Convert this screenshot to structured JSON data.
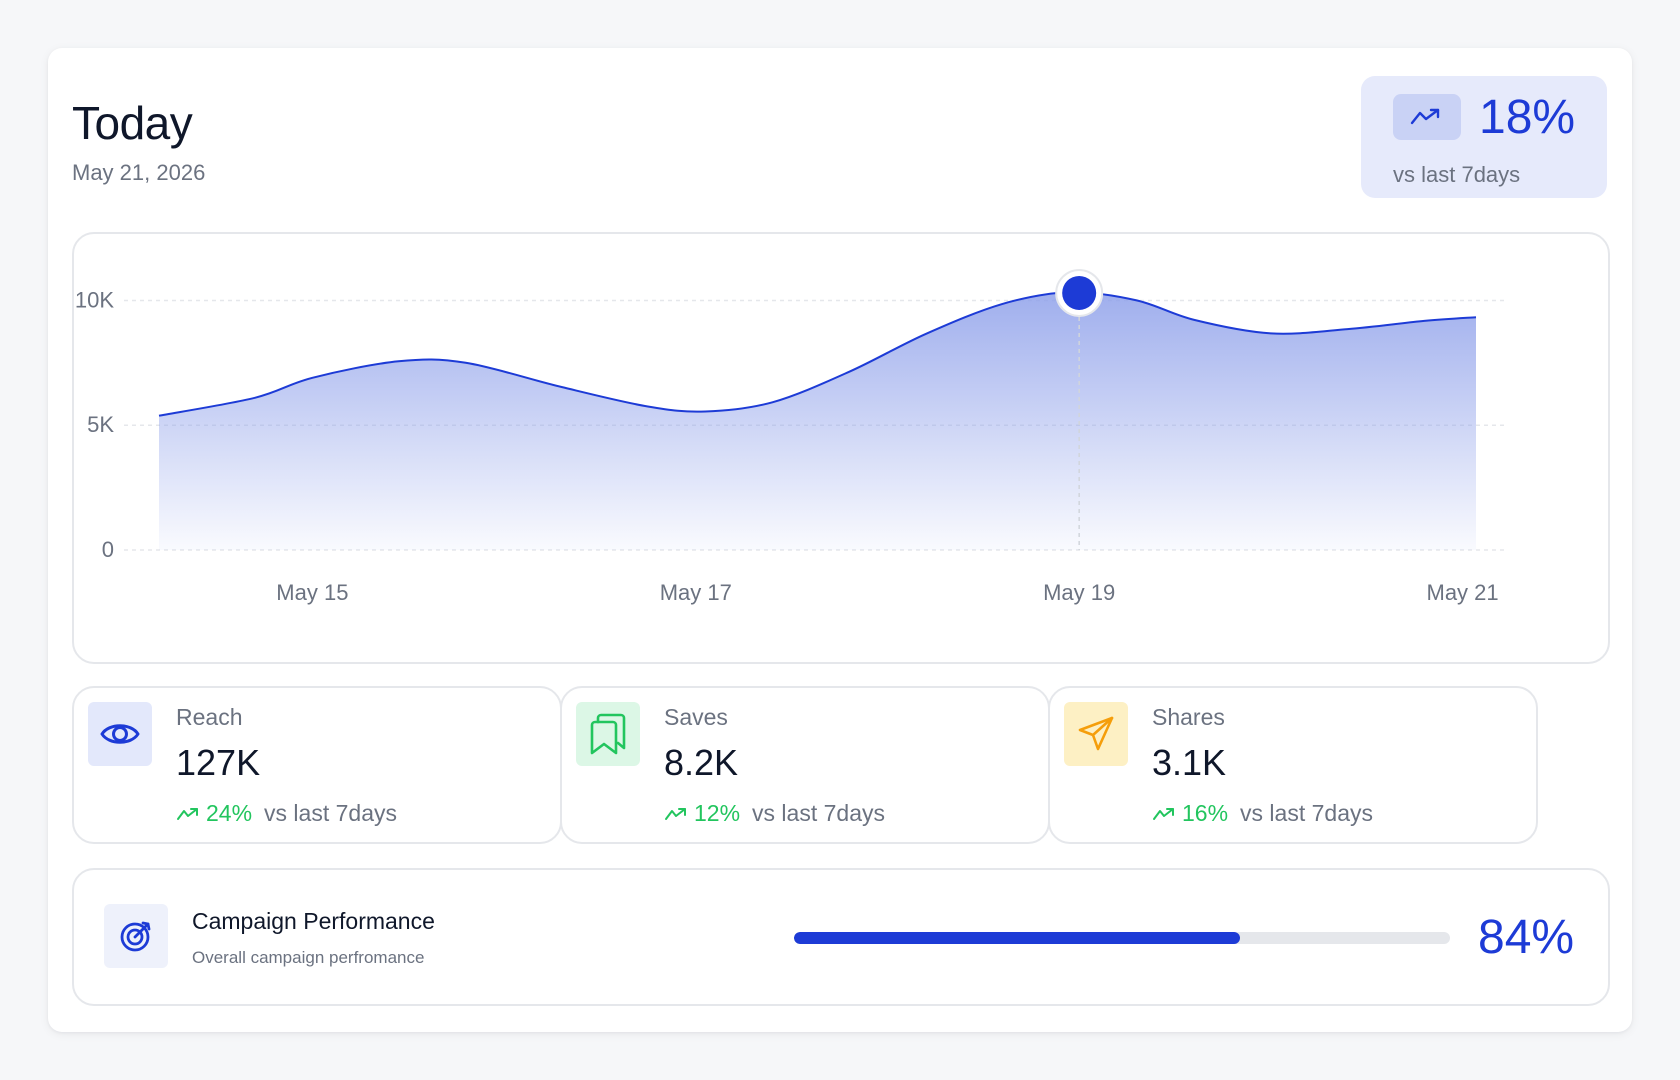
{
  "header": {
    "title": "Today",
    "date": "May 21, 2026",
    "trend": {
      "value": "18%",
      "label": "vs last 7days",
      "icon": "trend-up-icon"
    }
  },
  "chart_data": {
    "type": "area",
    "x_labels": [
      "May 15",
      "May 17",
      "May 19",
      "May 21"
    ],
    "y_ticks": [
      "0",
      "5K",
      "10K"
    ],
    "ylim": [
      0,
      11300
    ],
    "xlim": [
      14.2,
      21.07
    ],
    "points": [
      {
        "x": 14.2,
        "y": 5380
      },
      {
        "x": 14.7,
        "y": 6100
      },
      {
        "x": 15.0,
        "y": 6900
      },
      {
        "x": 15.45,
        "y": 7560
      },
      {
        "x": 15.8,
        "y": 7500
      },
      {
        "x": 16.3,
        "y": 6530
      },
      {
        "x": 16.75,
        "y": 5750
      },
      {
        "x": 17.05,
        "y": 5550
      },
      {
        "x": 17.4,
        "y": 5920
      },
      {
        "x": 17.8,
        "y": 7140
      },
      {
        "x": 18.2,
        "y": 8660
      },
      {
        "x": 18.6,
        "y": 9860
      },
      {
        "x": 18.95,
        "y": 10330
      },
      {
        "x": 19.3,
        "y": 10000
      },
      {
        "x": 19.6,
        "y": 9220
      },
      {
        "x": 20.0,
        "y": 8680
      },
      {
        "x": 20.4,
        "y": 8850
      },
      {
        "x": 20.8,
        "y": 9180
      },
      {
        "x": 21.07,
        "y": 9330
      }
    ],
    "highlight": {
      "x": 19.0,
      "y": 10300
    },
    "grid": "horizontal dashed",
    "line_color": "#1d3bd6",
    "fill_color": "#8ea0ea"
  },
  "stats": [
    {
      "label": "Reach",
      "value": "127K",
      "change": "24%",
      "compare": "vs last 7days",
      "icon": "eye-icon",
      "icon_bg": "#e3e8fb",
      "icon_color": "#1d3bd6"
    },
    {
      "label": "Saves",
      "value": "8.2K",
      "change": "12%",
      "compare": "vs last 7days",
      "icon": "bookmarks-icon",
      "icon_bg": "#dcf7e6",
      "icon_color": "#22c55e"
    },
    {
      "label": "Shares",
      "value": "3.1K",
      "change": "16%",
      "compare": "vs last 7days",
      "icon": "send-icon",
      "icon_bg": "#fdf0c4",
      "icon_color": "#f59e0b"
    }
  ],
  "campaign": {
    "title": "Campaign Performance",
    "subtitle": "Overall campaign perfromance",
    "progress": 0.68,
    "value": "84%",
    "icon": "target-icon"
  },
  "colors": {
    "accent": "#1d3bd6",
    "positive": "#22c55e",
    "muted": "#6b7280"
  }
}
